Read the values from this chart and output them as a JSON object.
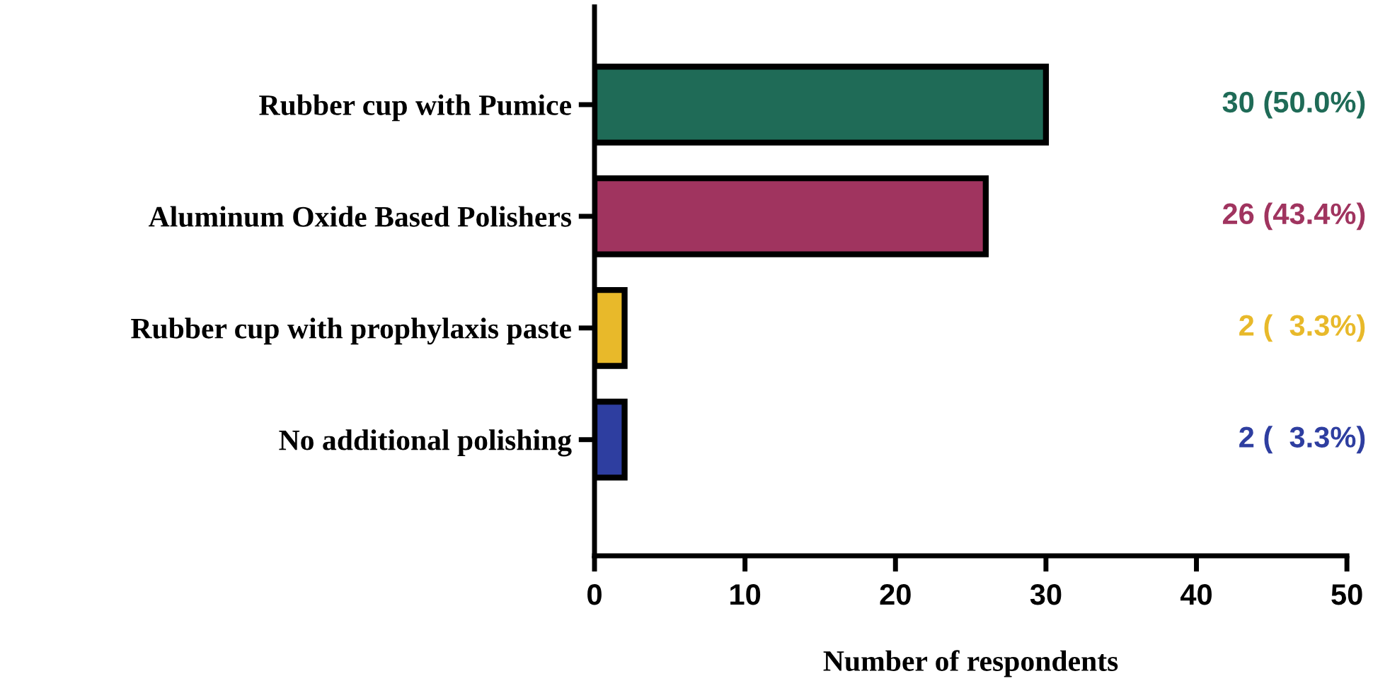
{
  "chart_data": {
    "type": "bar",
    "orientation": "horizontal",
    "xlabel": "Number of respondents",
    "categories": [
      "Rubber cup with Pumice",
      "Aluminum Oxide Based Polishers",
      "Rubber cup with prophylaxis paste",
      "No additional polishing"
    ],
    "values": [
      30,
      26,
      2,
      2
    ],
    "colors": [
      "#1f6b57",
      "#a0345f",
      "#e8b92a",
      "#2e3ea0"
    ],
    "value_labels": [
      "30 (50.0%)",
      "26 (43.4%)",
      "2 (  3.3%)",
      "2 (  3.3%)"
    ],
    "xlim": [
      0,
      50
    ],
    "xticks": [
      0,
      10,
      20,
      30,
      40,
      50
    ],
    "grid": false,
    "legend": false
  }
}
